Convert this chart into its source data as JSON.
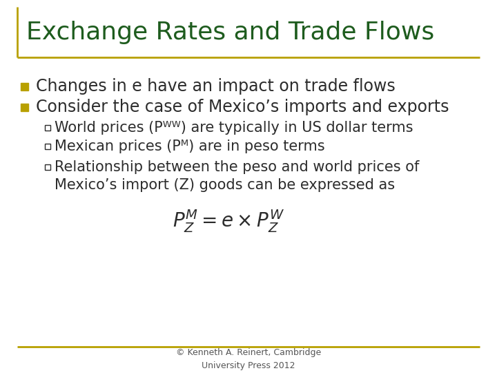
{
  "title": "Exchange Rates and Trade Flows",
  "title_color": "#1e5c1e",
  "title_fontsize": 26,
  "bg_color": "#ffffff",
  "border_color": "#b8a000",
  "bullet_color": "#b8a000",
  "text_color": "#2c2c2c",
  "bullet1": "Changes in e have an impact on trade flows",
  "bullet2": "Consider the case of Mexico’s imports and exports",
  "sub1": "World prices (Pᵂᵂ) are typically in US dollar terms",
  "sub2": "Mexican prices (Pᴹ) are in peso terms",
  "sub3a": "Relationship between the peso and world prices of",
  "sub3b": "Mexico’s import (Z) goods can be expressed as",
  "formula": "$P_Z^M = e \\times P_Z^W$",
  "footer": "© Kenneth A. Reinert, Cambridge\nUniversity Press 2012",
  "main_fontsize": 17,
  "sub_fontsize": 15,
  "footer_fontsize": 9
}
